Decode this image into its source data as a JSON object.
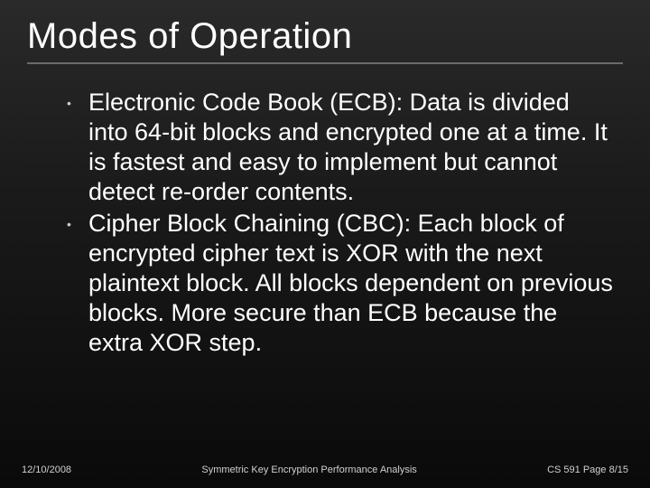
{
  "slide": {
    "title": "Modes of Operation",
    "title_fontsize": 40,
    "title_color": "#ffffff",
    "accent_line_color": "#6a6a6a",
    "background_gradient_top": "#2a2a2a",
    "background_gradient_bottom": "#0a0a0a",
    "bullets": [
      "Electronic Code Book (ECB):  Data is divided into 64-bit blocks and encrypted one at a time.  It is fastest and easy to implement but cannot detect re-order contents.",
      "Cipher Block Chaining (CBC): Each block of encrypted cipher text is XOR with the next plaintext block.  All blocks dependent on previous blocks.  More secure than ECB because the extra XOR step."
    ],
    "bullet_fontsize": 27,
    "bullet_color": "#ffffff"
  },
  "footer": {
    "date": "12/10/2008",
    "center": "Symmetric Key Encryption Performance Analysis",
    "page": "CS 591 Page 8/15",
    "fontsize": 11,
    "color": "#d0d0d0"
  }
}
